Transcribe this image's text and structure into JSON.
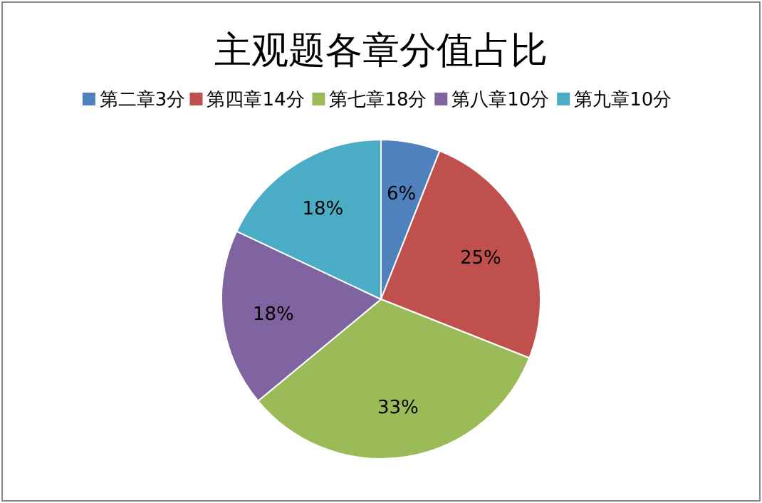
{
  "chart_data": {
    "type": "pie",
    "title": "主观题各章分值占比",
    "categories": [
      "第二章3分",
      "第四章14分",
      "第七章18分",
      "第八章10分",
      "第九章10分"
    ],
    "values": [
      6,
      25,
      33,
      18,
      18
    ],
    "value_labels": [
      "6%",
      "25%",
      "33%",
      "18%",
      "18%"
    ],
    "colors": [
      "#4f81bd",
      "#c0504d",
      "#9bbb59",
      "#8064a2",
      "#4bacc6"
    ],
    "legend": "top"
  }
}
